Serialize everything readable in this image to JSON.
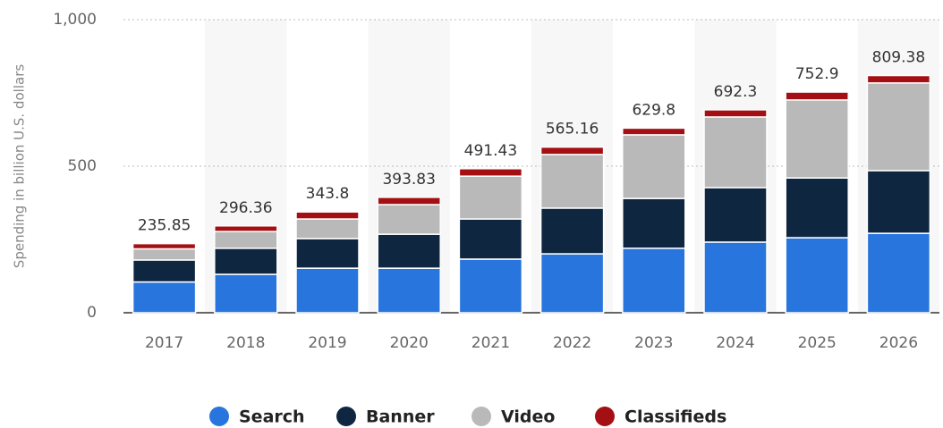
{
  "chart_data": {
    "type": "bar",
    "stacked": true,
    "ylabel": "Spending in billion U.S. dollars",
    "categories": [
      "2017",
      "2018",
      "2019",
      "2020",
      "2021",
      "2022",
      "2023",
      "2024",
      "2025",
      "2026"
    ],
    "series": [
      {
        "name": "Search",
        "color": "#2876dd",
        "values": [
          105,
          131,
          152,
          152,
          183,
          201,
          220,
          241,
          256,
          271
        ]
      },
      {
        "name": "Banner",
        "color": "#0f2640",
        "values": [
          75,
          89,
          101,
          116,
          137,
          156,
          170,
          186,
          204,
          214
        ]
      },
      {
        "name": "Video",
        "color": "#b9b9b9",
        "values": [
          38,
          57,
          67,
          101,
          146,
          183,
          217,
          241,
          266,
          299
        ]
      },
      {
        "name": "Classifieds",
        "color": "#a30f12",
        "values": [
          17.85,
          19.36,
          23.8,
          24.83,
          25.43,
          25.16,
          22.8,
          24.3,
          26.9,
          25.38
        ]
      }
    ],
    "totals": [
      235.85,
      296.36,
      343.8,
      393.83,
      491.43,
      565.16,
      629.8,
      692.3,
      752.9,
      809.38
    ],
    "ylim": [
      0,
      1000
    ],
    "yticks": [
      0,
      500,
      {
        "value": 1000,
        "label": "1,000"
      }
    ],
    "grid": true
  }
}
